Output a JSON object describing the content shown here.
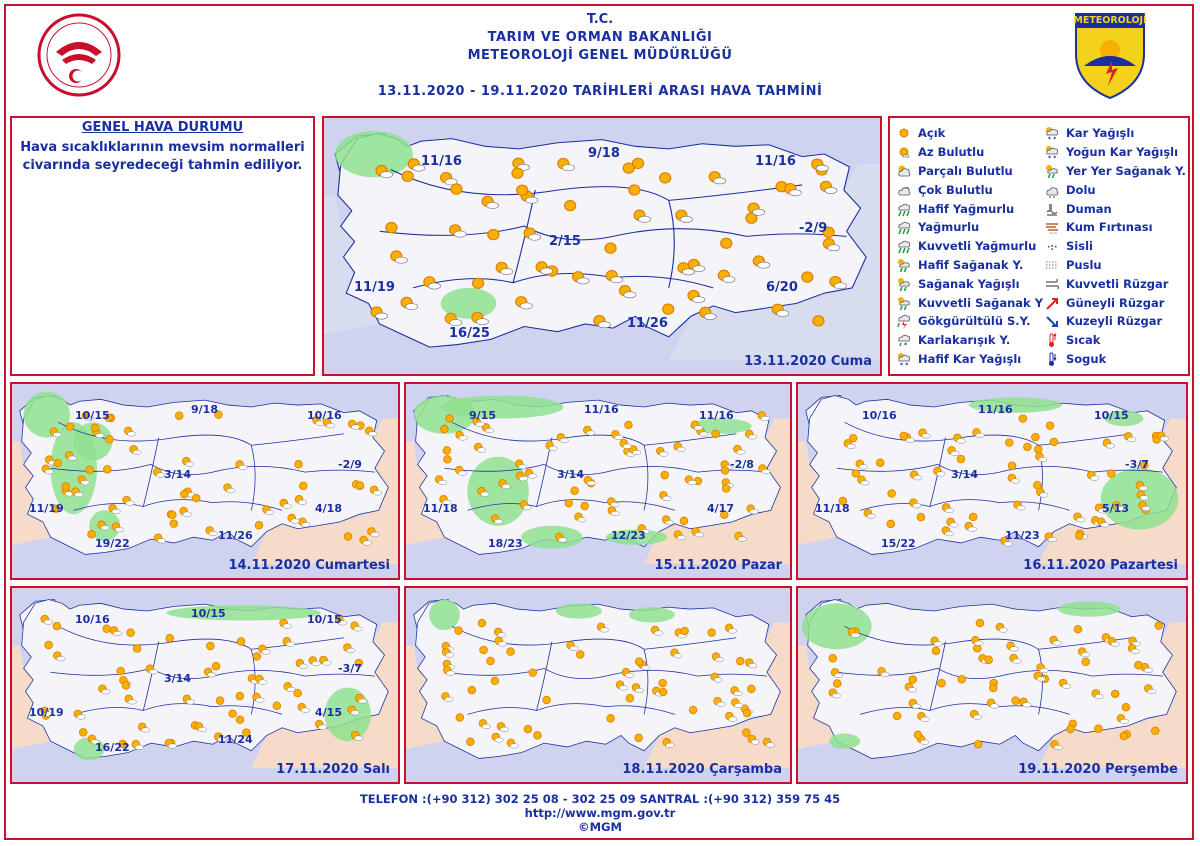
{
  "header": {
    "line1": "T.C.",
    "line2": "TARIM VE ORMAN BAKANLIĞI",
    "line3": "METEOROLOJİ GENEL MÜDÜRLÜĞÜ",
    "range": "13.11.2020  -  19.11.2020   TARİHLERİ ARASI HAVA TAHMİNİ",
    "logo_right_text": "METEOROLOJİ"
  },
  "general": {
    "title": "GENEL HAVA DURUMU",
    "text": "Hava sıcaklıklarının mevsim normalleri civarında seyredeceği tahmin ediliyor."
  },
  "legend": {
    "col1": [
      {
        "label": "Açık",
        "icon": "sun-icon"
      },
      {
        "label": "Az Bulutlu",
        "icon": "sun-small-cloud-icon"
      },
      {
        "label": "Parçalı Bulutlu",
        "icon": "partly-cloudy-icon"
      },
      {
        "label": "Çok Bulutlu",
        "icon": "cloudy-icon"
      },
      {
        "label": "Hafif Yağmurlu",
        "icon": "light-rain-icon"
      },
      {
        "label": "Yağmurlu",
        "icon": "rain-icon"
      },
      {
        "label": "Kuvvetli Yağmurlu",
        "icon": "heavy-rain-icon"
      },
      {
        "label": "Hafif Sağanak Y.",
        "icon": "light-shower-icon"
      },
      {
        "label": "Sağanak Yağışlı",
        "icon": "shower-icon"
      },
      {
        "label": "Kuvvetli Sağanak Y",
        "icon": "heavy-shower-icon"
      },
      {
        "label": "Gökgürültülü S.Y.",
        "icon": "thunder-icon"
      },
      {
        "label": "Karlakarışık Y.",
        "icon": "sleet-icon"
      },
      {
        "label": "Hafif Kar Yağışlı",
        "icon": "light-snow-icon"
      }
    ],
    "col2": [
      {
        "label": "Kar Yağışlı",
        "icon": "snow-icon"
      },
      {
        "label": "Yoğun Kar Yağışlı",
        "icon": "heavy-snow-icon"
      },
      {
        "label": "Yer Yer Sağanak Y.",
        "icon": "local-shower-icon"
      },
      {
        "label": "Dolu",
        "icon": "hail-icon"
      },
      {
        "label": "Duman",
        "icon": "smoke-icon"
      },
      {
        "label": "Kum Fırtınası",
        "icon": "sandstorm-icon"
      },
      {
        "label": "Sisli",
        "icon": "fog-icon"
      },
      {
        "label": "Puslu",
        "icon": "haze-icon"
      },
      {
        "label": "Kuvvetli Rüzgar",
        "icon": "strong-wind-icon"
      },
      {
        "label": "Güneyli Rüzgar",
        "icon": "south-wind-icon"
      },
      {
        "label": "Kuzeyli Rüzgar",
        "icon": "north-wind-icon"
      },
      {
        "label": "Sıcak",
        "icon": "hot-icon"
      },
      {
        "label": "Soguk",
        "icon": "cold-icon"
      }
    ]
  },
  "days": [
    {
      "date": "13.11.2020 Cuma",
      "temps": [
        "11/16",
        "9/18",
        "11/16",
        "2/15",
        "-2/9",
        "11/19",
        "11/26",
        "6/20",
        "16/25"
      ]
    },
    {
      "date": "14.11.2020 Cumartesi",
      "temps": [
        "10/15",
        "9/18",
        "10/16",
        "3/14",
        "-2/9",
        "11/19",
        "11/26",
        "4/18",
        "19/22"
      ]
    },
    {
      "date": "15.11.2020 Pazar",
      "temps": [
        "9/15",
        "11/16",
        "11/16",
        "3/14",
        "-2/8",
        "11/18",
        "12/23",
        "4/17",
        "18/23"
      ]
    },
    {
      "date": "16.11.2020 Pazartesi",
      "temps": [
        "10/16",
        "11/16",
        "10/15",
        "3/14",
        "-3/7",
        "11/18",
        "11/23",
        "5/13",
        "15/22"
      ]
    },
    {
      "date": "17.11.2020 Salı",
      "temps": [
        "10/16",
        "10/15",
        "10/15",
        "3/14",
        "-3/7",
        "10/19",
        "11/24",
        "4/15",
        "16/22"
      ]
    },
    {
      "date": "18.11.2020 Çarşamba",
      "temps": []
    },
    {
      "date": "19.11.2020 Perşembe",
      "temps": []
    }
  ],
  "footer": {
    "phone": "TELEFON :(+90 312) 302 25 08 - 302 25 09  SANTRAL :(+90 312) 359 75 45",
    "url": "http://www.mgm.gov.tr",
    "copyright": "©MGM"
  },
  "colors": {
    "accent": "#c8102e",
    "text": "#1a2fa0",
    "sea": "#cfd3f0",
    "land": "#f5f4f8",
    "rain_area": "#8fe08f",
    "outside": "#f6dcc8"
  }
}
